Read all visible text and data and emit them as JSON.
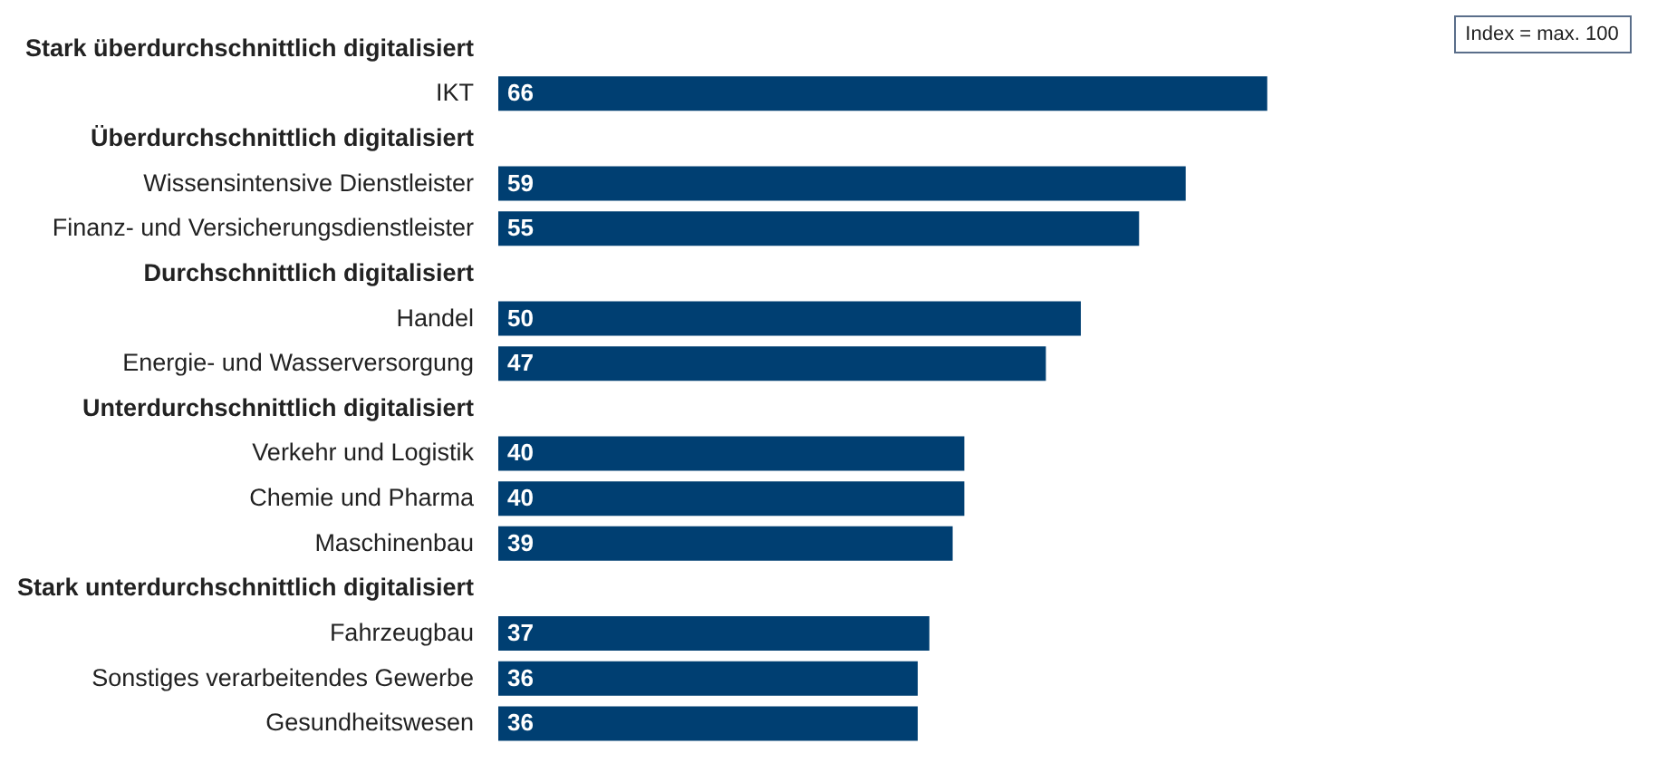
{
  "chart_data": {
    "type": "bar",
    "orientation": "horizontal",
    "categories": [
      "Stark überdurchschnittlich digitalisiert",
      "IKT",
      "Überdurchschnittlich digitalisiert",
      "Wissensintensive Dienstleister",
      "Finanz- und Versicherungsdienstleister",
      "Durchschnittlich digitalisiert",
      "Handel",
      "Energie- und Wasserversorgung",
      "Unterdurchschnittlich digitalisiert",
      "Verkehr und Logistik",
      "Chemie und Pharma",
      "Maschinenbau",
      "Stark unterdurchschnittlich digitalisiert",
      "Fahrzeugbau",
      "Sonstiges verarbeitendes Gewerbe",
      "Gesundheitswesen"
    ],
    "values": [
      null,
      66,
      null,
      59,
      55,
      null,
      50,
      47,
      null,
      40,
      40,
      39,
      null,
      37,
      36,
      36
    ],
    "color": "#003f72",
    "xlim": [
      0,
      100
    ],
    "tick_labels": "y",
    "data_labels": true,
    "annotations": [
      "Index = max. 100"
    ]
  }
}
